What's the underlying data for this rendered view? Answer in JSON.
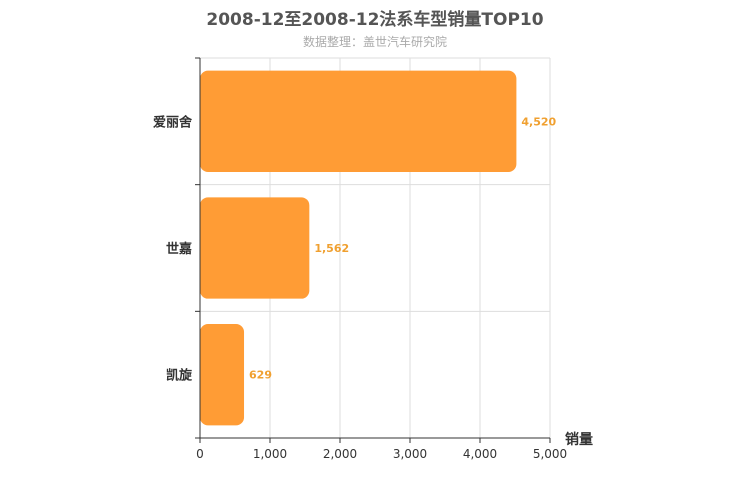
{
  "chart_data": {
    "type": "bar",
    "orientation": "horizontal",
    "title": "2008-12至2008-12法系车型销量TOP10",
    "subtitle": "数据整理：盖世汽车研究院",
    "categories": [
      "爱丽舍",
      "世嘉",
      "凯旋"
    ],
    "values": [
      4520,
      1562,
      629
    ],
    "value_labels": [
      "4,520",
      "1,562",
      "629"
    ],
    "xlabel": "销量",
    "ylabel": "",
    "xlim": [
      0,
      5000
    ],
    "x_ticks": [
      0,
      1000,
      2000,
      3000,
      4000,
      5000
    ],
    "x_tick_labels": [
      "0",
      "1,000",
      "2,000",
      "3,000",
      "4,000",
      "5,000"
    ],
    "grid": true,
    "colors": {
      "bar": "#ff9c35",
      "value_label": "#f0a030",
      "grid": "#dddddd",
      "axis": "#333333",
      "title": "#555555"
    }
  }
}
